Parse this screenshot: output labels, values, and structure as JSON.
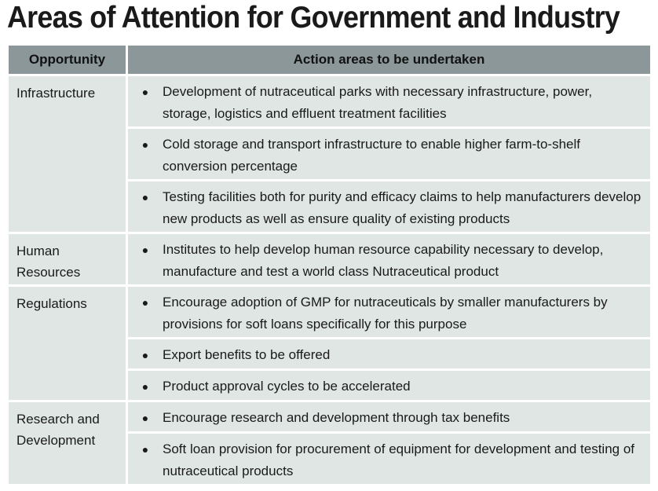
{
  "title": "Areas of Attention for Government and Industry",
  "table": {
    "headers": {
      "opportunity": "Opportunity",
      "actions": "Action areas to be undertaken"
    },
    "bullet": "●",
    "groups": [
      {
        "opportunity": "Infrastructure",
        "actions": [
          "Development of nutraceutical parks with necessary infrastructure, power, storage, logistics and effluent treatment facilities",
          "Cold storage and transport infrastructure to enable higher farm-to-shelf conversion percentage",
          "Testing facilities both for purity and efficacy claims to help manufacturers develop new products as well as ensure quality of existing products"
        ]
      },
      {
        "opportunity": "Human Resources",
        "actions": [
          "Institutes to help develop human resource capability necessary to develop, manufacture and test a world class Nutraceutical product"
        ]
      },
      {
        "opportunity": "Regulations",
        "actions": [
          "Encourage adoption of GMP for nutraceuticals by smaller manufacturers by provisions for soft loans specifically for this purpose",
          "Export benefits to be offered",
          "Product approval cycles to be accelerated"
        ]
      },
      {
        "opportunity": "Research and Development",
        "actions": [
          "Encourage research and development through tax benefits",
          "Soft loan provision for procurement of equipment for development and testing of nutraceutical products"
        ]
      }
    ]
  }
}
